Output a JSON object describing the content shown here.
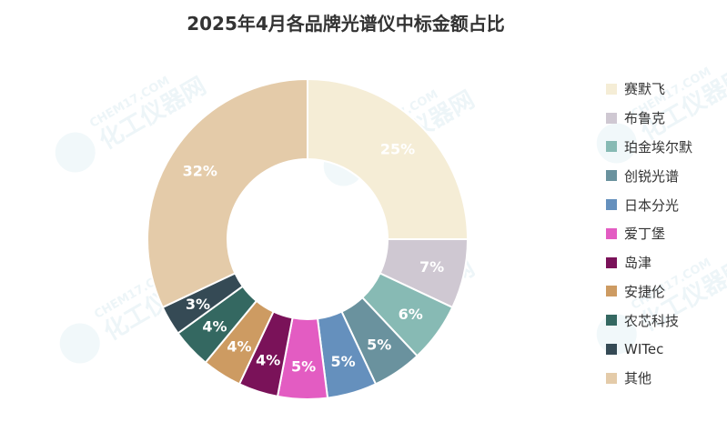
{
  "chart_data": {
    "type": "pie",
    "style": "donut",
    "title": "2025年4月各品牌光谱仪中标金额占比",
    "categories": [
      "赛默飞",
      "布鲁克",
      "珀金埃尔默",
      "创锐光谱",
      "日本分光",
      "爱丁堡",
      "岛津",
      "安捷伦",
      "农芯科技",
      "WITec",
      "其他"
    ],
    "values": [
      25,
      7,
      6,
      5,
      5,
      5,
      4,
      4,
      4,
      3,
      32
    ],
    "value_labels": [
      "25%",
      "7%",
      "6%",
      "5%",
      "5%",
      "5%",
      "4%",
      "4%",
      "4%",
      "3%",
      "32%"
    ],
    "colors": [
      "#f5edd6",
      "#cfc8d2",
      "#87bab4",
      "#6a929e",
      "#6590bd",
      "#e35cc2",
      "#7a1259",
      "#cd9b62",
      "#346861",
      "#354a55",
      "#e4cba9"
    ],
    "legend_position": "right"
  },
  "watermark": {
    "brand": "化工仪器网",
    "sub": "CHEM17.COM"
  }
}
